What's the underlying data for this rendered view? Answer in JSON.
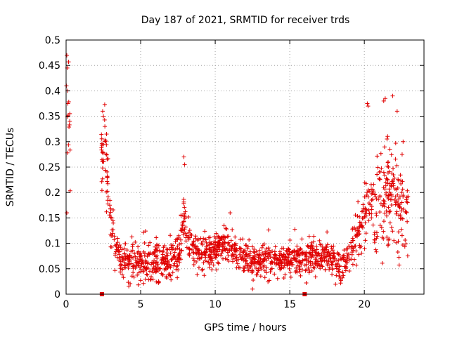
{
  "chart_data": {
    "type": "scatter",
    "title": "Day 187 of 2021, SRMTID for receiver trds",
    "xlabel": "GPS time / hours",
    "ylabel": "SRMTID / TECUs",
    "xlim": [
      0,
      24
    ],
    "ylim": [
      0,
      0.5
    ],
    "x_ticks": [
      0,
      5,
      10,
      15,
      20
    ],
    "x_tick_labels": [
      "0",
      "5",
      "10",
      "15",
      "20"
    ],
    "y_ticks": [
      0,
      0.05,
      0.1,
      0.15,
      0.2,
      0.25,
      0.3,
      0.35,
      0.4,
      0.45,
      0.5
    ],
    "y_tick_labels": [
      "0",
      "0.05",
      "0.1",
      "0.15",
      "0.2",
      "0.25",
      "0.3",
      "0.35",
      "0.4",
      "0.45",
      "0.5"
    ],
    "grid": true,
    "marker": "+",
    "color": "#e00000",
    "gap_markers": [
      {
        "x": 2.4,
        "y": 0
      },
      {
        "x": 16.0,
        "y": 0
      }
    ],
    "envelope": [
      {
        "x": 0.0,
        "y": 0.3
      },
      {
        "x": 0.15,
        "y": 0.36
      },
      {
        "x": 0.3,
        "y": 0.25
      },
      {
        "x": 2.4,
        "y": 0.28
      },
      {
        "x": 2.6,
        "y": 0.3
      },
      {
        "x": 2.8,
        "y": 0.22
      },
      {
        "x": 3.0,
        "y": 0.15
      },
      {
        "x": 3.3,
        "y": 0.08
      },
      {
        "x": 4.0,
        "y": 0.065
      },
      {
        "x": 5.0,
        "y": 0.065
      },
      {
        "x": 6.0,
        "y": 0.06
      },
      {
        "x": 7.0,
        "y": 0.065
      },
      {
        "x": 7.6,
        "y": 0.09
      },
      {
        "x": 7.9,
        "y": 0.15
      },
      {
        "x": 8.2,
        "y": 0.1
      },
      {
        "x": 9.0,
        "y": 0.075
      },
      {
        "x": 10.0,
        "y": 0.085
      },
      {
        "x": 10.6,
        "y": 0.1
      },
      {
        "x": 11.5,
        "y": 0.08
      },
      {
        "x": 12.5,
        "y": 0.065
      },
      {
        "x": 13.5,
        "y": 0.07
      },
      {
        "x": 14.5,
        "y": 0.065
      },
      {
        "x": 15.5,
        "y": 0.07
      },
      {
        "x": 16.5,
        "y": 0.075
      },
      {
        "x": 17.5,
        "y": 0.075
      },
      {
        "x": 18.5,
        "y": 0.055
      },
      {
        "x": 19.0,
        "y": 0.08
      },
      {
        "x": 19.5,
        "y": 0.11
      },
      {
        "x": 20.0,
        "y": 0.15
      },
      {
        "x": 20.5,
        "y": 0.18
      },
      {
        "x": 21.0,
        "y": 0.17
      },
      {
        "x": 21.5,
        "y": 0.2
      },
      {
        "x": 22.0,
        "y": 0.19
      },
      {
        "x": 22.5,
        "y": 0.17
      },
      {
        "x": 22.9,
        "y": 0.15
      }
    ],
    "spread": [
      {
        "x": 0.0,
        "s": 0.06
      },
      {
        "x": 2.4,
        "s": 0.05
      },
      {
        "x": 3.2,
        "s": 0.025
      },
      {
        "x": 7.8,
        "s": 0.03
      },
      {
        "x": 8.5,
        "s": 0.022
      },
      {
        "x": 18.8,
        "s": 0.022
      },
      {
        "x": 19.8,
        "s": 0.04
      },
      {
        "x": 21.0,
        "s": 0.07
      },
      {
        "x": 23.0,
        "s": 0.06
      }
    ],
    "gaps": [
      [
        0.3,
        2.35
      ]
    ],
    "outliers": [
      {
        "x": 0.05,
        "y": 0.47
      },
      {
        "x": 0.08,
        "y": 0.445
      },
      {
        "x": 0.02,
        "y": 0.41
      },
      {
        "x": 0.1,
        "y": 0.4
      },
      {
        "x": 0.12,
        "y": 0.375
      },
      {
        "x": 0.05,
        "y": 0.16
      },
      {
        "x": 2.45,
        "y": 0.36
      },
      {
        "x": 2.5,
        "y": 0.35
      },
      {
        "x": 2.6,
        "y": 0.33
      },
      {
        "x": 7.9,
        "y": 0.27
      },
      {
        "x": 7.95,
        "y": 0.255
      },
      {
        "x": 11.0,
        "y": 0.16
      },
      {
        "x": 21.3,
        "y": 0.38
      },
      {
        "x": 21.4,
        "y": 0.385
      },
      {
        "x": 21.9,
        "y": 0.39
      },
      {
        "x": 22.2,
        "y": 0.36
      },
      {
        "x": 20.2,
        "y": 0.375
      },
      {
        "x": 20.25,
        "y": 0.37
      },
      {
        "x": 22.6,
        "y": 0.3
      },
      {
        "x": 12.5,
        "y": 0.01
      }
    ],
    "samples": 1600,
    "seed": 187
  }
}
